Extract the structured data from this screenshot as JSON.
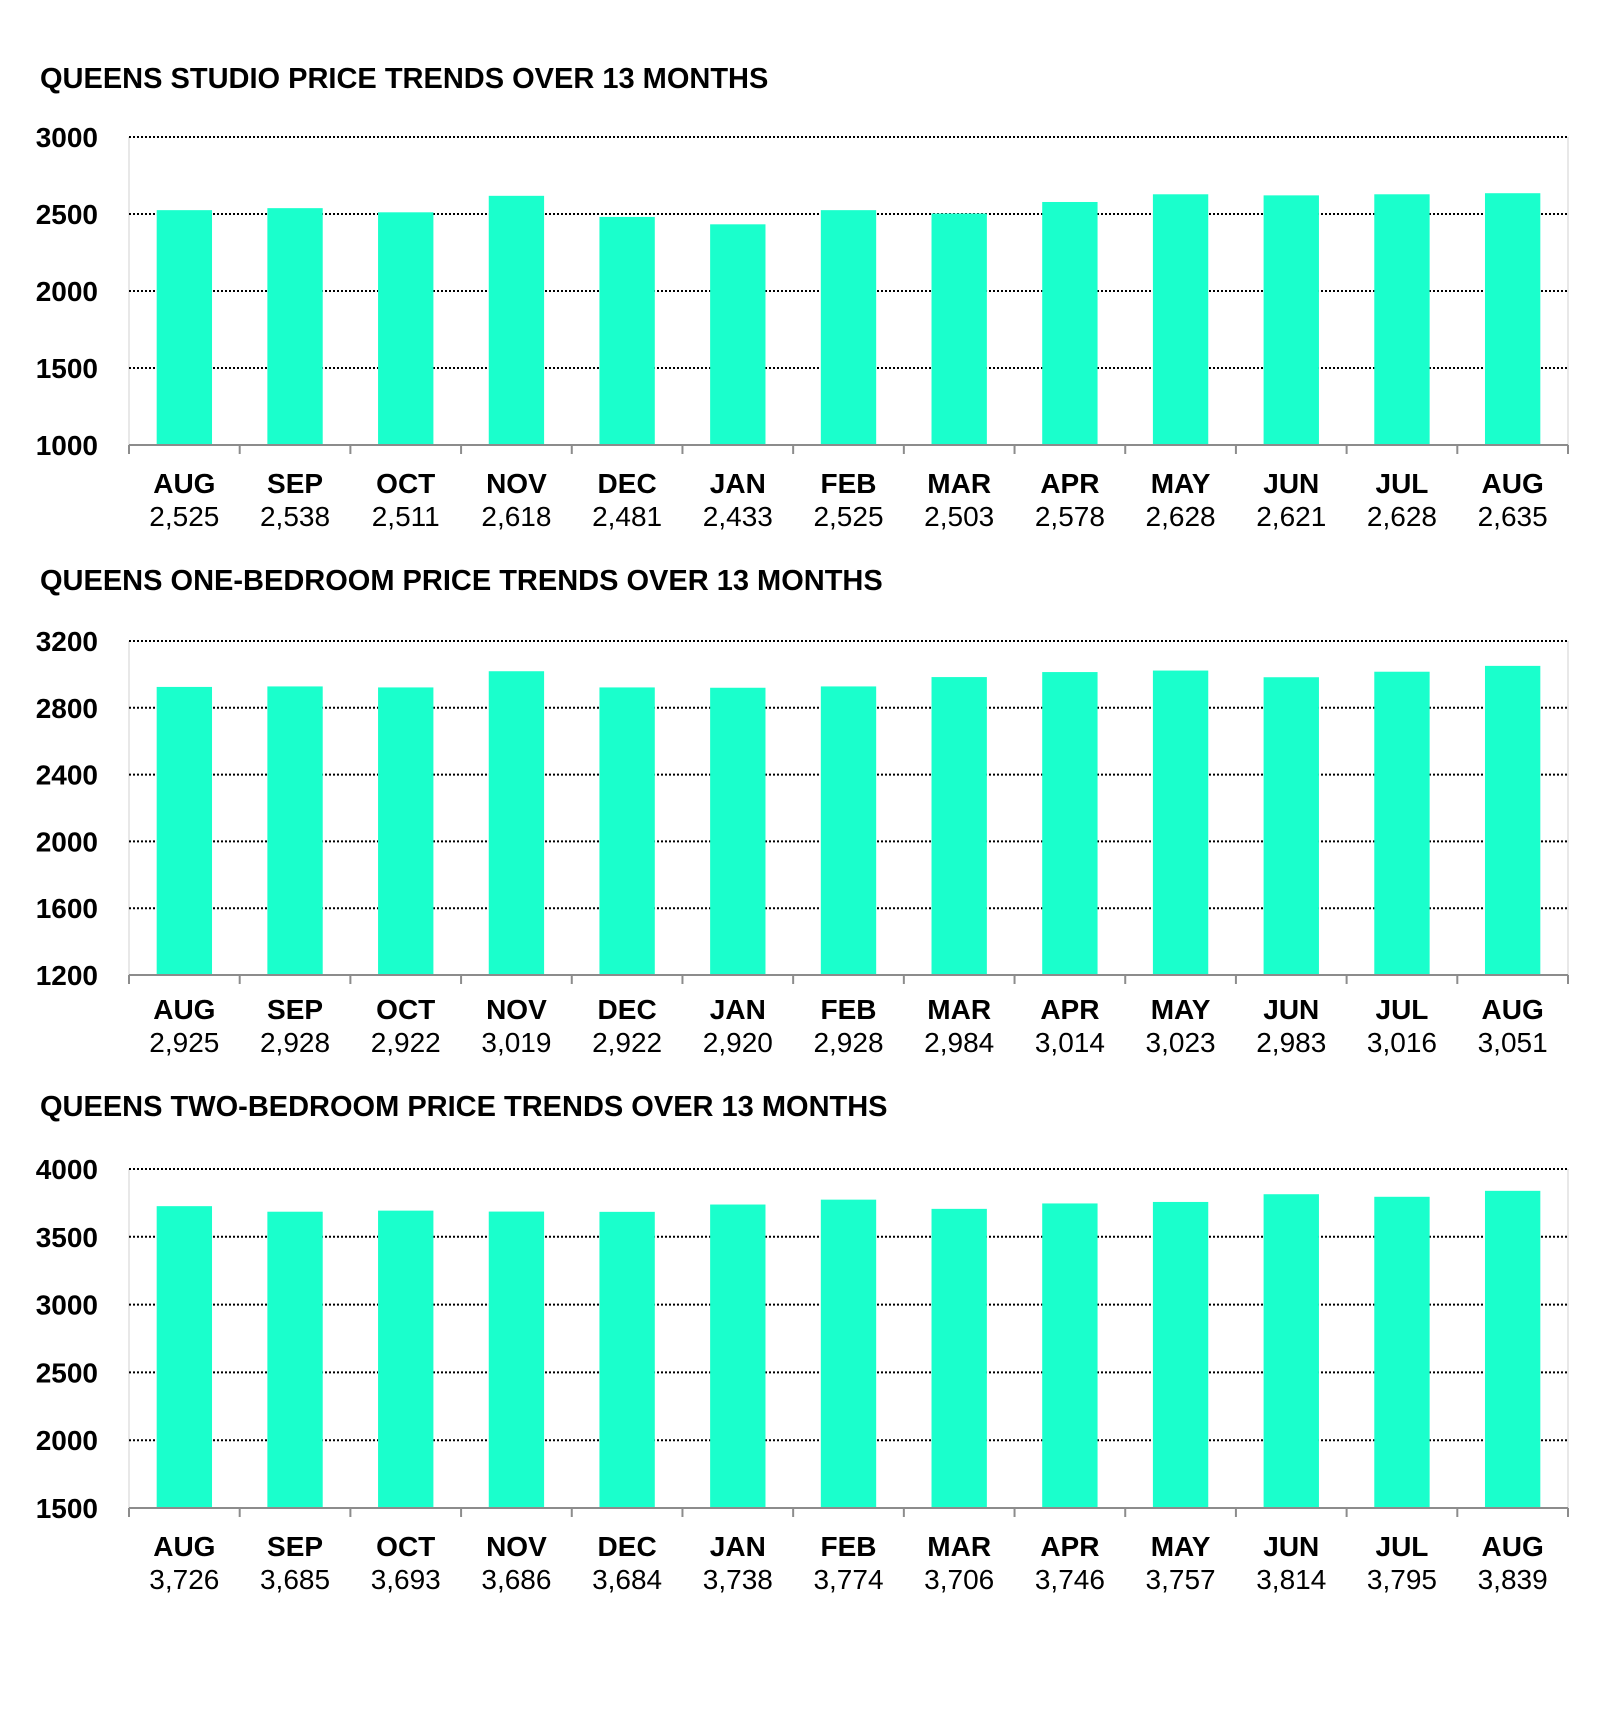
{
  "chart_data": [
    {
      "type": "bar",
      "title": "QUEENS STUDIO PRICE TRENDS OVER 13 MONTHS",
      "categories": [
        "AUG",
        "SEP",
        "OCT",
        "NOV",
        "DEC",
        "JAN",
        "FEB",
        "MAR",
        "APR",
        "MAY",
        "JUN",
        "JUL",
        "AUG"
      ],
      "value_labels": [
        "2,525",
        "2,538",
        "2,511",
        "2,618",
        "2,481",
        "2,433",
        "2,525",
        "2,503",
        "2,578",
        "2,628",
        "2,621",
        "2,628",
        "2,635"
      ],
      "values": [
        2525,
        2538,
        2511,
        2618,
        2481,
        2433,
        2525,
        2503,
        2578,
        2628,
        2621,
        2628,
        2635
      ],
      "ylim": [
        1000,
        3000
      ],
      "yticks": [
        3000,
        2500,
        2000,
        1500,
        1000
      ],
      "grid": true,
      "bar_color": "#1affcc"
    },
    {
      "type": "bar",
      "title": "QUEENS ONE-BEDROOM PRICE TRENDS OVER 13 MONTHS",
      "categories": [
        "AUG",
        "SEP",
        "OCT",
        "NOV",
        "DEC",
        "JAN",
        "FEB",
        "MAR",
        "APR",
        "MAY",
        "JUN",
        "JUL",
        "AUG"
      ],
      "value_labels": [
        "2,925",
        "2,928",
        "2,922",
        "3,019",
        "2,922",
        "2,920",
        "2,928",
        "2,984",
        "3,014",
        "3,023",
        "2,983",
        "3,016",
        "3,051"
      ],
      "values": [
        2925,
        2928,
        2922,
        3019,
        2922,
        2920,
        2928,
        2984,
        3014,
        3023,
        2983,
        3016,
        3051
      ],
      "ylim": [
        1200,
        3200
      ],
      "yticks": [
        3200,
        2800,
        2400,
        2000,
        1600,
        1200
      ],
      "grid": true,
      "bar_color": "#1affcc"
    },
    {
      "type": "bar",
      "title": "QUEENS TWO-BEDROOM PRICE TRENDS OVER 13 MONTHS",
      "categories": [
        "AUG",
        "SEP",
        "OCT",
        "NOV",
        "DEC",
        "JAN",
        "FEB",
        "MAR",
        "APR",
        "MAY",
        "JUN",
        "JUL",
        "AUG"
      ],
      "value_labels": [
        "3,726",
        "3,685",
        "3,693",
        "3,686",
        "3,684",
        "3,738",
        "3,774",
        "3,706",
        "3,746",
        "3,757",
        "3,814",
        "3,795",
        "3,839"
      ],
      "values": [
        3726,
        3685,
        3693,
        3686,
        3684,
        3738,
        3774,
        3706,
        3746,
        3757,
        3814,
        3795,
        3839
      ],
      "ylim": [
        1500,
        4000
      ],
      "yticks": [
        4000,
        3500,
        3000,
        2500,
        2000,
        1500
      ],
      "grid": true,
      "bar_color": "#1affcc"
    }
  ]
}
